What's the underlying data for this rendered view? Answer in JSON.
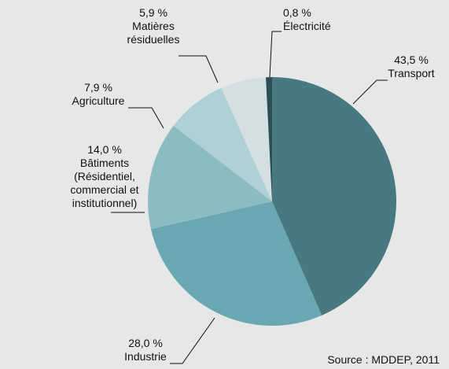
{
  "chart_data": {
    "type": "pie",
    "categories": [
      "Transport",
      "Industrie",
      "Bâtiments (Résidentiel, commercial et institutionnel)",
      "Agriculture",
      "Matières résiduelles",
      "Électricité"
    ],
    "values": [
      43.5,
      28.0,
      14.0,
      7.9,
      5.9,
      0.8
    ],
    "value_labels": [
      "43,5 %",
      "28,0 %",
      "14,0 %",
      "7,9 %",
      "5,9 %",
      "0,8 %"
    ],
    "colors": [
      "#487880",
      "#69a8b2",
      "#8bbcc2",
      "#afd0d4",
      "#d3dfe1",
      "#2a4f55"
    ],
    "source": "Source : MDDEP, 2011"
  }
}
